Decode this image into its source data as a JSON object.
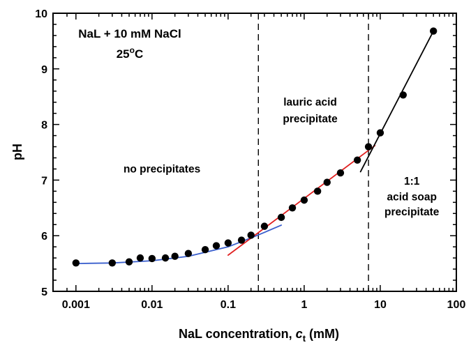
{
  "chart_data": {
    "type": "scatter",
    "xlabel": "NaL concentration, ",
    "xlabel_italic": "c",
    "xlabel_sub": "t",
    "xlabel_unit": " (mM)",
    "ylabel": "pH",
    "xscale": "log",
    "xlim": [
      0.0005,
      100
    ],
    "ylim": [
      5,
      10
    ],
    "grid": false,
    "x_ticks": [
      0.001,
      0.01,
      0.1,
      1,
      10,
      100
    ],
    "x_tick_labels": [
      "0.001",
      "0.01",
      "0.1",
      "1",
      "10",
      "100"
    ],
    "y_ticks": [
      5,
      6,
      7,
      8,
      9,
      10
    ],
    "y_tick_labels": [
      "5",
      "6",
      "7",
      "8",
      "9",
      "10"
    ],
    "legend_text": {
      "line1": "NaL + 10 mM NaCl",
      "line2_base": "25",
      "line2_sup": "o",
      "line2_end": "C"
    },
    "data_points": {
      "x": [
        0.001,
        0.003,
        0.005,
        0.007,
        0.01,
        0.015,
        0.02,
        0.03,
        0.05,
        0.07,
        0.1,
        0.15,
        0.2,
        0.3,
        0.5,
        0.7,
        1,
        1.5,
        2,
        3,
        5,
        7,
        10,
        20,
        50
      ],
      "y": [
        5.51,
        5.51,
        5.53,
        5.6,
        5.59,
        5.6,
        5.63,
        5.68,
        5.75,
        5.82,
        5.87,
        5.92,
        6.01,
        6.17,
        6.33,
        6.5,
        6.64,
        6.8,
        6.96,
        7.13,
        7.36,
        7.6,
        7.85,
        8.53,
        9.68
      ]
    },
    "fit_lines": [
      {
        "color": "#3a5fcd",
        "type": "curve",
        "x": [
          0.001,
          0.003,
          0.01,
          0.03,
          0.1,
          0.2,
          0.3,
          0.5
        ],
        "y": [
          5.5,
          5.51,
          5.55,
          5.63,
          5.8,
          5.96,
          6.06,
          6.19
        ]
      },
      {
        "color": "#e02020",
        "type": "line",
        "x": [
          0.1,
          8.5
        ],
        "y": [
          5.65,
          7.62
        ]
      },
      {
        "color": "#000000",
        "type": "line",
        "x": [
          5.5,
          50
        ],
        "y": [
          7.15,
          9.68
        ]
      }
    ],
    "vertical_dashed_lines": [
      0.25,
      7.0
    ],
    "annotations": [
      {
        "id": "no-precipitates",
        "lines": [
          "no precipitates"
        ],
        "x": 0.0135,
        "y": 7.2
      },
      {
        "id": "lauric-acid-precipitate",
        "lines": [
          "lauric acid",
          "precipitate"
        ],
        "x": 1.2,
        "y": [
          8.4,
          8.1
        ]
      },
      {
        "id": "acid-soap-precipitate",
        "lines": [
          "1:1",
          "acid soap",
          "precipitate"
        ],
        "x": 26,
        "y": [
          6.98,
          6.7,
          6.43
        ]
      }
    ]
  }
}
